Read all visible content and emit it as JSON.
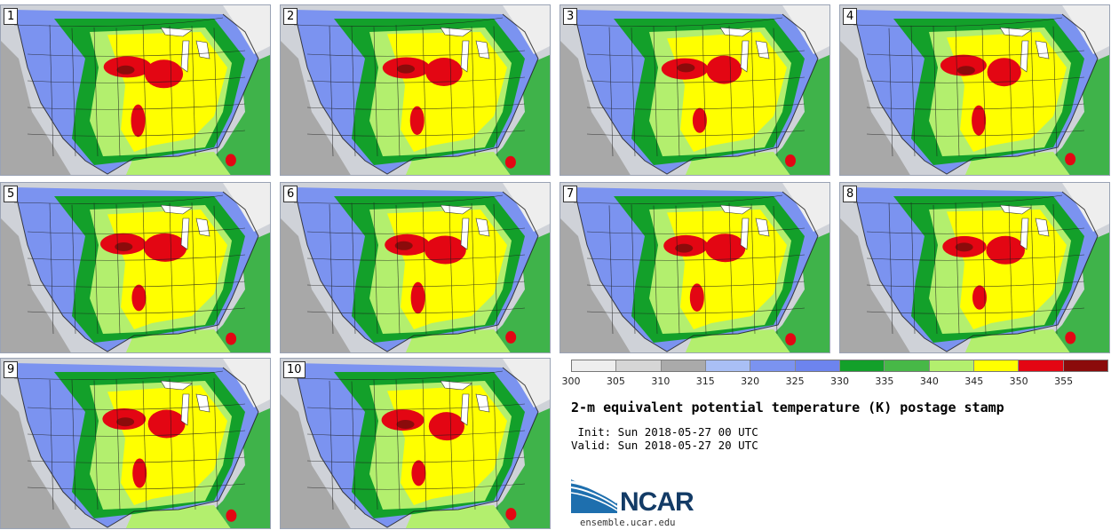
{
  "panels": [
    {
      "label": "1"
    },
    {
      "label": "2"
    },
    {
      "label": "3"
    },
    {
      "label": "4"
    },
    {
      "label": "5"
    },
    {
      "label": "6"
    },
    {
      "label": "7"
    },
    {
      "label": "8"
    },
    {
      "label": "9"
    },
    {
      "label": "10"
    }
  ],
  "colorbar": {
    "ticks": [
      "300",
      "305",
      "310",
      "315",
      "320",
      "325",
      "330",
      "335",
      "340",
      "345",
      "350",
      "355"
    ],
    "colors": [
      "#eeeeee",
      "#d6d6d6",
      "#aaaaaa",
      "#a9bff5",
      "#7b93f0",
      "#6d84ee",
      "#13a02a",
      "#47b847",
      "#b3ef6e",
      "#ffff00",
      "#e30613",
      "#8b0b0b"
    ]
  },
  "title": "2-m equivalent potential temperature (K) postage stamp",
  "init": " Init: Sun 2018-05-27 00 UTC",
  "valid": "Valid: Sun 2018-05-27 20 UTC",
  "logo": {
    "text": "NCAR",
    "url": "ensemble.ucar.edu"
  },
  "colors": {
    "ocean": "#cfd2d8",
    "land_cool": "#7b93f0",
    "land_warm": "#ffff00",
    "hot": "#e30613",
    "border": "#1a1a1a"
  }
}
